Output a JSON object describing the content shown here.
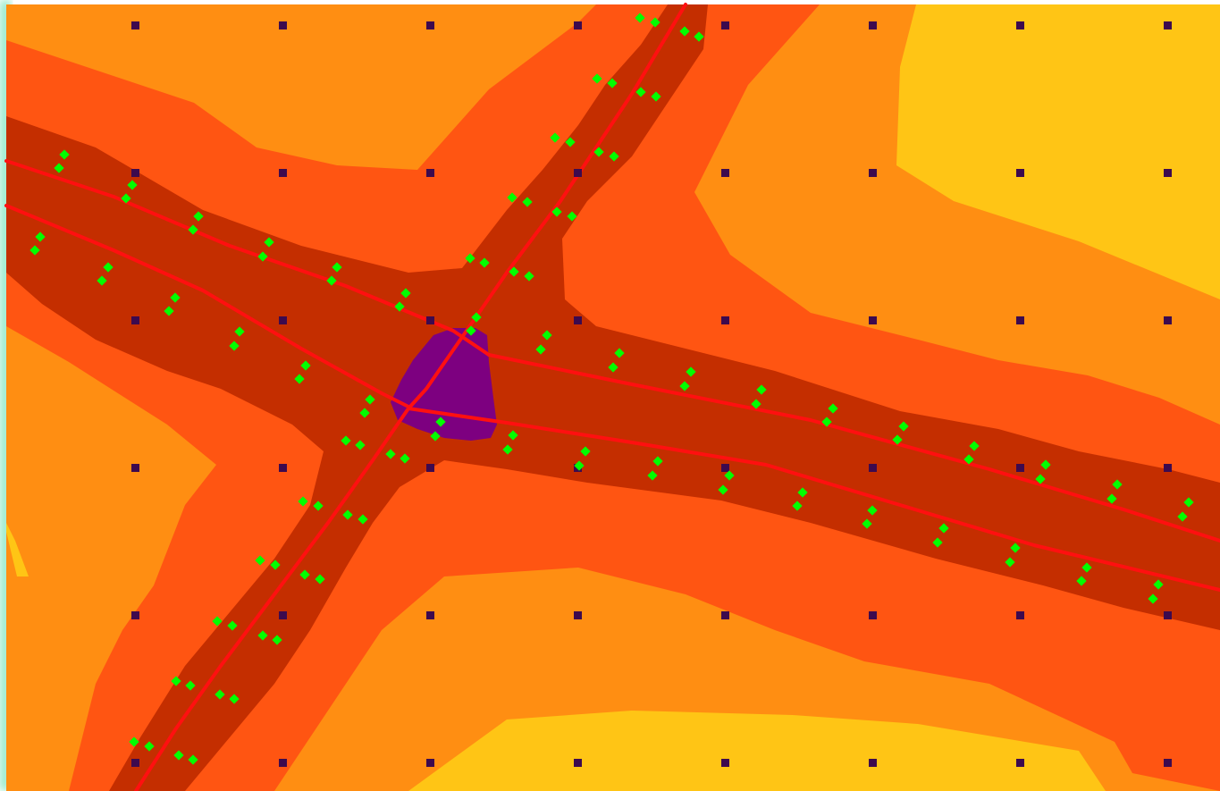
{
  "map": {
    "colors": {
      "background": "#ffffff",
      "zone_far": "#FFC515",
      "zone_outer": "#FF8E12",
      "zone_mid": "#FF5512",
      "zone_near": "#C42E00",
      "junction": "#7D0080",
      "road_line": "#FF1010",
      "grid_marker": "#3D0A4E",
      "sensor_marker": "#00FF00",
      "edge_glow": "#8FE8C8"
    },
    "grid": {
      "columns": 8,
      "rows": 6
    },
    "road_segments": [
      "northwest-arm-upper",
      "northwest-arm-lower",
      "northeast-arm",
      "southwest-arm",
      "east-arm-upper",
      "east-arm-lower"
    ],
    "icons": {
      "grid_marker": "square-marker-icon",
      "sensor": "diamond-sensor-icon"
    }
  }
}
